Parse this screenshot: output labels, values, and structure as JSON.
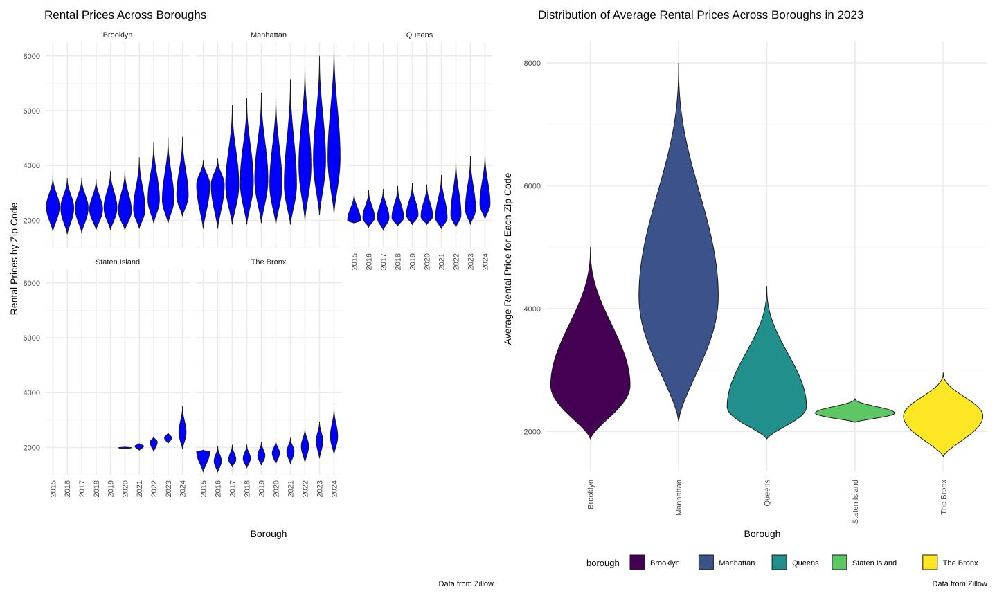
{
  "chart_data": [
    {
      "type": "violin",
      "title": "Rental Prices Across Boroughs",
      "xlabel": "Borough",
      "ylabel": "Rental Prices by Zip Code",
      "caption": "Data from Zillow",
      "facet_by": "borough",
      "facets": [
        "Brooklyn",
        "Manhattan",
        "Queens",
        "Staten Island",
        "The Bronx"
      ],
      "categories": [
        "2015",
        "2016",
        "2017",
        "2018",
        "2019",
        "2020",
        "2021",
        "2022",
        "2023",
        "2024"
      ],
      "fill_color": "#0000ff",
      "ylim": [
        1000,
        8500
      ],
      "yticks": [
        2000,
        4000,
        6000,
        8000
      ],
      "grid": true,
      "panels": [
        {
          "name": "Brooklyn",
          "violins": [
            {
              "year": "2015",
              "min": 1600,
              "max": 3600,
              "median": 2500,
              "halfwidth": 0.45
            },
            {
              "year": "2016",
              "min": 1500,
              "max": 3550,
              "median": 2450,
              "halfwidth": 0.45
            },
            {
              "year": "2017",
              "min": 1550,
              "max": 3550,
              "median": 2450,
              "halfwidth": 0.45
            },
            {
              "year": "2018",
              "min": 1650,
              "max": 3500,
              "median": 2400,
              "halfwidth": 0.45
            },
            {
              "year": "2019",
              "min": 1650,
              "max": 3800,
              "median": 2450,
              "halfwidth": 0.45
            },
            {
              "year": "2020",
              "min": 1650,
              "max": 3800,
              "median": 2350,
              "halfwidth": 0.45
            },
            {
              "year": "2021",
              "min": 1700,
              "max": 4300,
              "median": 2400,
              "halfwidth": 0.4
            },
            {
              "year": "2022",
              "min": 1900,
              "max": 4850,
              "median": 2750,
              "halfwidth": 0.4
            },
            {
              "year": "2023",
              "min": 1900,
              "max": 5000,
              "median": 2750,
              "halfwidth": 0.4
            },
            {
              "year": "2024",
              "min": 2150,
              "max": 5050,
              "median": 2900,
              "halfwidth": 0.4
            }
          ]
        },
        {
          "name": "Manhattan",
          "violins": [
            {
              "year": "2015",
              "min": 1700,
              "max": 4200,
              "median": 3300,
              "halfwidth": 0.45
            },
            {
              "year": "2016",
              "min": 1700,
              "max": 4250,
              "median": 3300,
              "halfwidth": 0.45
            },
            {
              "year": "2017",
              "min": 1850,
              "max": 6200,
              "median": 3300,
              "halfwidth": 0.45
            },
            {
              "year": "2018",
              "min": 1850,
              "max": 6450,
              "median": 3400,
              "halfwidth": 0.45
            },
            {
              "year": "2019",
              "min": 1900,
              "max": 6650,
              "median": 3500,
              "halfwidth": 0.45
            },
            {
              "year": "2020",
              "min": 1850,
              "max": 6550,
              "median": 3300,
              "halfwidth": 0.42
            },
            {
              "year": "2021",
              "min": 1850,
              "max": 7150,
              "median": 3300,
              "halfwidth": 0.42
            },
            {
              "year": "2022",
              "min": 2000,
              "max": 7650,
              "median": 4000,
              "halfwidth": 0.42
            },
            {
              "year": "2023",
              "min": 2200,
              "max": 8000,
              "median": 4200,
              "halfwidth": 0.42
            },
            {
              "year": "2024",
              "min": 2250,
              "max": 8400,
              "median": 4300,
              "halfwidth": 0.42
            }
          ]
        },
        {
          "name": "Queens",
          "violins": [
            {
              "year": "2015",
              "min": 1900,
              "max": 3000,
              "median": 2000,
              "halfwidth": 0.45
            },
            {
              "year": "2016",
              "min": 1750,
              "max": 3100,
              "median": 2100,
              "halfwidth": 0.4
            },
            {
              "year": "2017",
              "min": 1650,
              "max": 3150,
              "median": 2100,
              "halfwidth": 0.4
            },
            {
              "year": "2018",
              "min": 1800,
              "max": 3250,
              "median": 2100,
              "halfwidth": 0.4
            },
            {
              "year": "2019",
              "min": 1850,
              "max": 3350,
              "median": 2200,
              "halfwidth": 0.4
            },
            {
              "year": "2020",
              "min": 1850,
              "max": 3300,
              "median": 2150,
              "halfwidth": 0.4
            },
            {
              "year": "2021",
              "min": 1700,
              "max": 3650,
              "median": 2100,
              "halfwidth": 0.4
            },
            {
              "year": "2022",
              "min": 1750,
              "max": 4200,
              "median": 2200,
              "halfwidth": 0.35
            },
            {
              "year": "2023",
              "min": 1850,
              "max": 4350,
              "median": 2400,
              "halfwidth": 0.35
            },
            {
              "year": "2024",
              "min": 2050,
              "max": 4450,
              "median": 2600,
              "halfwidth": 0.35
            }
          ]
        },
        {
          "name": "Staten Island",
          "violins": [
            {
              "year": "2020",
              "min": 1950,
              "max": 2020,
              "median": 1990,
              "halfwidth": 0.45
            },
            {
              "year": "2021",
              "min": 1900,
              "max": 2150,
              "median": 2050,
              "halfwidth": 0.3
            },
            {
              "year": "2022",
              "min": 1850,
              "max": 2400,
              "median": 2200,
              "halfwidth": 0.25
            },
            {
              "year": "2023",
              "min": 2150,
              "max": 2550,
              "median": 2350,
              "halfwidth": 0.25
            },
            {
              "year": "2024",
              "min": 1950,
              "max": 3500,
              "median": 2550,
              "halfwidth": 0.25
            }
          ]
        },
        {
          "name": "The Bronx",
          "violins": [
            {
              "year": "2015",
              "min": 1100,
              "max": 1900,
              "median": 1850,
              "halfwidth": 0.45
            },
            {
              "year": "2016",
              "min": 1100,
              "max": 2050,
              "median": 1500,
              "halfwidth": 0.25
            },
            {
              "year": "2017",
              "min": 1300,
              "max": 2100,
              "median": 1550,
              "halfwidth": 0.25
            },
            {
              "year": "2018",
              "min": 1250,
              "max": 2100,
              "median": 1600,
              "halfwidth": 0.25
            },
            {
              "year": "2019",
              "min": 1350,
              "max": 2200,
              "median": 1700,
              "halfwidth": 0.25
            },
            {
              "year": "2020",
              "min": 1400,
              "max": 2250,
              "median": 1800,
              "halfwidth": 0.25
            },
            {
              "year": "2021",
              "min": 1400,
              "max": 2350,
              "median": 1850,
              "halfwidth": 0.25
            },
            {
              "year": "2022",
              "min": 1450,
              "max": 2700,
              "median": 2050,
              "halfwidth": 0.25
            },
            {
              "year": "2023",
              "min": 1600,
              "max": 2950,
              "median": 2250,
              "halfwidth": 0.22
            },
            {
              "year": "2024",
              "min": 1750,
              "max": 3450,
              "median": 2400,
              "halfwidth": 0.25
            }
          ]
        }
      ]
    },
    {
      "type": "violin",
      "title": "Distribution of Average Rental Prices Across Boroughs in 2023",
      "xlabel": "Borough",
      "ylabel": "Average Rental Price for Each Zip Code",
      "caption": "Data from Zillow",
      "categories": [
        "Brooklyn",
        "Manhattan",
        "Queens",
        "Staten Island",
        "The Bronx"
      ],
      "ylim": [
        1350,
        8350
      ],
      "yticks": [
        2000,
        4000,
        6000,
        8000
      ],
      "grid": true,
      "legend": {
        "title": "borough",
        "position": "bottom",
        "entries": [
          {
            "label": "Brooklyn",
            "color": "#440154"
          },
          {
            "label": "Manhattan",
            "color": "#3b528b"
          },
          {
            "label": "Queens",
            "color": "#21908c"
          },
          {
            "label": "Staten Island",
            "color": "#5dc863"
          },
          {
            "label": "The Bronx",
            "color": "#fde725"
          }
        ]
      },
      "series": [
        {
          "name": "Brooklyn",
          "min": 1880,
          "max": 5000,
          "median": 2750,
          "color": "#440154"
        },
        {
          "name": "Manhattan",
          "min": 2170,
          "max": 8000,
          "median": 4200,
          "color": "#3b528b"
        },
        {
          "name": "Queens",
          "min": 1880,
          "max": 4370,
          "median": 2400,
          "color": "#21908c"
        },
        {
          "name": "Staten Island",
          "min": 2150,
          "max": 2540,
          "median": 2300,
          "color": "#5dc863"
        },
        {
          "name": "The Bronx",
          "min": 1590,
          "max": 2960,
          "median": 2250,
          "color": "#fde725"
        }
      ]
    }
  ]
}
